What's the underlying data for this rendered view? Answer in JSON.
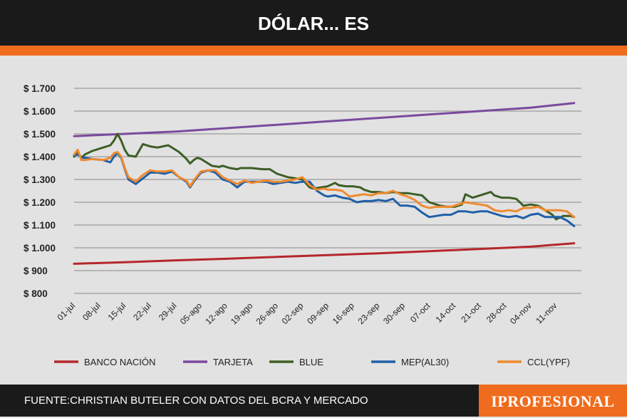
{
  "header": {
    "title": "DÓLAR... ES"
  },
  "footer": {
    "source": "FUENTE:CHRISTIAN BUTELER CON DATOS DEL BCRA Y MERCADO",
    "brand": "IPROFESIONAL"
  },
  "colors": {
    "header_bg": "#1a1a1a",
    "accent": "#ef6c1e",
    "background": "#e2e2e2",
    "grid": "#9a9a9a"
  },
  "chart_data": {
    "type": "line",
    "title": "DÓLAR... ES",
    "xlabel": "",
    "ylabel": "",
    "ylim": [
      800,
      1700
    ],
    "y_ticks": [
      800,
      900,
      1000,
      1100,
      1200,
      1300,
      1400,
      1500,
      1600,
      1700
    ],
    "y_tick_labels": [
      "$ 800",
      "$ 900",
      "$ 1.000",
      "$ 1.100",
      "$ 1.200",
      "$ 1.300",
      "$ 1.400",
      "$ 1.500",
      "$ 1.600",
      "$ 1.700"
    ],
    "x_tick_labels": [
      "01-jul",
      "08-jul",
      "15-jul",
      "22-jul",
      "29-jul",
      "05-ago",
      "12-ago",
      "19-ago",
      "26-ago",
      "02-sep",
      "09-sep",
      "16-sep",
      "23-sep",
      "30-sep",
      "07-oct",
      "14-oct",
      "21-oct",
      "28-oct",
      "04-nov",
      "11-nov"
    ],
    "x_range_days": [
      0,
      140
    ],
    "grid": true,
    "legend_position": "bottom",
    "series": [
      {
        "name": "BANCO NACIÓN",
        "color": "#b5272b",
        "x": [
          0,
          14,
          28,
          42,
          56,
          70,
          84,
          98,
          112,
          126,
          138
        ],
        "y": [
          930,
          937,
          945,
          952,
          960,
          968,
          976,
          985,
          995,
          1005,
          1020
        ]
      },
      {
        "name": "TARJETA",
        "color": "#7a4a9e",
        "x": [
          0,
          14,
          28,
          42,
          56,
          70,
          84,
          98,
          112,
          126,
          138
        ],
        "y": [
          1490,
          1500,
          1510,
          1525,
          1540,
          1555,
          1570,
          1585,
          1600,
          1615,
          1635
        ]
      },
      {
        "name": "BLUE",
        "color": "#3d5e26",
        "x": [
          0,
          1,
          2,
          3,
          5,
          8,
          10,
          11,
          12,
          13,
          14,
          15,
          17,
          19,
          21,
          23,
          26,
          28,
          29,
          31,
          32,
          33,
          34,
          35,
          36,
          38,
          40,
          41,
          43,
          45,
          46,
          49,
          52,
          54,
          56,
          59,
          61,
          63,
          65,
          66,
          68,
          70,
          72,
          73,
          75,
          77,
          79,
          80,
          82,
          83,
          84,
          86,
          88,
          90,
          92,
          94,
          96,
          98,
          100,
          101,
          103,
          105,
          107,
          108,
          110,
          112,
          114,
          115,
          116,
          118,
          120,
          122,
          124,
          126,
          128,
          130,
          132,
          133,
          135,
          137,
          138
        ],
        "y": [
          1400,
          1420,
          1395,
          1410,
          1425,
          1440,
          1450,
          1470,
          1500,
          1470,
          1430,
          1405,
          1400,
          1455,
          1445,
          1440,
          1450,
          1430,
          1420,
          1390,
          1370,
          1385,
          1395,
          1390,
          1380,
          1360,
          1355,
          1360,
          1350,
          1345,
          1350,
          1350,
          1345,
          1345,
          1325,
          1310,
          1305,
          1300,
          1265,
          1260,
          1265,
          1270,
          1285,
          1275,
          1270,
          1270,
          1265,
          1255,
          1245,
          1245,
          1245,
          1240,
          1245,
          1240,
          1240,
          1235,
          1230,
          1200,
          1190,
          1185,
          1180,
          1180,
          1190,
          1235,
          1220,
          1230,
          1240,
          1245,
          1230,
          1220,
          1220,
          1215,
          1185,
          1190,
          1185,
          1165,
          1145,
          1125,
          1140,
          1140,
          1135
        ]
      },
      {
        "name": "MEP(AL30)",
        "color": "#1f5fa8",
        "x": [
          0,
          1,
          2,
          3,
          5,
          8,
          10,
          11,
          12,
          13,
          14,
          15,
          17,
          19,
          21,
          23,
          25,
          27,
          29,
          31,
          32,
          33,
          35,
          37,
          39,
          41,
          43,
          45,
          47,
          49,
          51,
          53,
          55,
          57,
          59,
          61,
          63,
          65,
          67,
          69,
          70,
          72,
          74,
          76,
          78,
          80,
          82,
          84,
          86,
          88,
          90,
          92,
          94,
          96,
          98,
          100,
          102,
          104,
          106,
          108,
          110,
          112,
          114,
          116,
          118,
          120,
          122,
          124,
          126,
          128,
          130,
          132,
          134,
          136,
          138
        ],
        "y": [
          1405,
          1410,
          1395,
          1395,
          1390,
          1385,
          1375,
          1400,
          1415,
          1395,
          1345,
          1300,
          1280,
          1305,
          1330,
          1330,
          1325,
          1335,
          1310,
          1290,
          1265,
          1290,
          1330,
          1340,
          1330,
          1300,
          1290,
          1265,
          1290,
          1290,
          1290,
          1290,
          1280,
          1285,
          1290,
          1285,
          1290,
          1290,
          1250,
          1230,
          1225,
          1230,
          1220,
          1215,
          1200,
          1205,
          1205,
          1210,
          1205,
          1215,
          1185,
          1185,
          1180,
          1155,
          1135,
          1140,
          1145,
          1145,
          1160,
          1160,
          1155,
          1160,
          1160,
          1150,
          1140,
          1135,
          1140,
          1130,
          1145,
          1150,
          1135,
          1135,
          1135,
          1120,
          1095
        ]
      },
      {
        "name": "CCL(YPF)",
        "color": "#ef8a2e",
        "x": [
          0,
          1,
          2,
          3,
          5,
          8,
          10,
          11,
          12,
          13,
          14,
          15,
          17,
          19,
          21,
          23,
          25,
          27,
          29,
          31,
          32,
          33,
          35,
          37,
          39,
          41,
          43,
          45,
          47,
          49,
          51,
          53,
          55,
          57,
          59,
          61,
          63,
          65,
          67,
          69,
          70,
          72,
          74,
          76,
          78,
          80,
          82,
          84,
          86,
          88,
          90,
          92,
          94,
          96,
          98,
          100,
          102,
          104,
          106,
          108,
          110,
          112,
          114,
          116,
          118,
          120,
          122,
          124,
          126,
          128,
          130,
          132,
          134,
          136,
          138
        ],
        "y": [
          1410,
          1430,
          1385,
          1385,
          1390,
          1385,
          1395,
          1415,
          1420,
          1400,
          1350,
          1310,
          1290,
          1320,
          1340,
          1335,
          1335,
          1340,
          1310,
          1295,
          1270,
          1295,
          1335,
          1340,
          1340,
          1310,
          1295,
          1280,
          1295,
          1285,
          1290,
          1295,
          1290,
          1290,
          1295,
          1300,
          1310,
          1275,
          1255,
          1260,
          1255,
          1255,
          1250,
          1225,
          1230,
          1235,
          1230,
          1240,
          1240,
          1250,
          1235,
          1225,
          1210,
          1185,
          1175,
          1180,
          1180,
          1180,
          1190,
          1200,
          1195,
          1190,
          1185,
          1165,
          1160,
          1165,
          1160,
          1175,
          1175,
          1180,
          1165,
          1165,
          1165,
          1160,
          1135
        ]
      }
    ]
  }
}
